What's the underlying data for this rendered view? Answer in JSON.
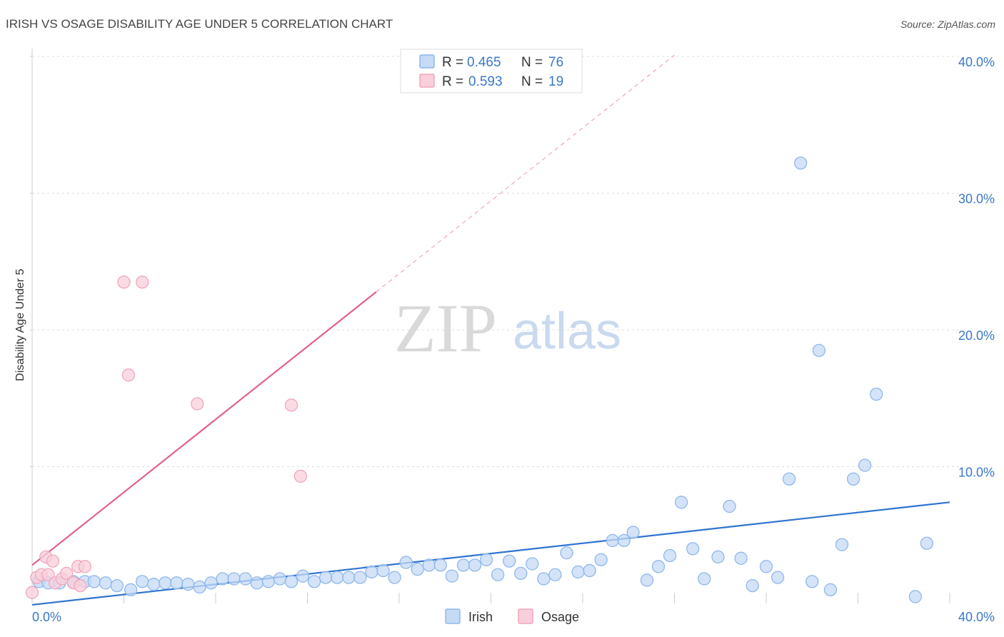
{
  "chart_data": {
    "type": "scatter",
    "title": "IRISH VS OSAGE DISABILITY AGE UNDER 5 CORRELATION CHART",
    "source": "Source: ZipAtlas.com",
    "xlabel": "",
    "ylabel": "Disability Age Under 5",
    "xlim": [
      0,
      40
    ],
    "ylim": [
      0,
      40
    ],
    "x_tick_labels": [
      "0.0%",
      "40.0%"
    ],
    "y_ticks": [
      10,
      20,
      30,
      40
    ],
    "y_tick_labels": [
      "10.0%",
      "20.0%",
      "30.0%",
      "40.0%"
    ],
    "watermark": {
      "zip": "ZIP",
      "atlas": "atlas"
    },
    "legend": {
      "rows": [
        {
          "r_label": "R =",
          "r_value": "0.465",
          "n_label": "N =",
          "n_value": "76"
        },
        {
          "r_label": "R =",
          "r_value": "0.593",
          "n_label": "N =",
          "n_value": "19"
        }
      ]
    },
    "series": [
      {
        "name": "Irish",
        "color": "#8fb8ec",
        "fill": "#c5daf5",
        "line_color": "#2f74d0",
        "trend": {
          "x": [
            0,
            40
          ],
          "y": [
            -0.1,
            7.4
          ]
        },
        "points": [
          [
            0.3,
            1.6
          ],
          [
            0.7,
            1.5
          ],
          [
            1.2,
            1.5
          ],
          [
            1.8,
            1.6
          ],
          [
            2.3,
            1.6
          ],
          [
            2.7,
            1.6
          ],
          [
            3.2,
            1.5
          ],
          [
            3.7,
            1.3
          ],
          [
            4.3,
            1.0
          ],
          [
            4.8,
            1.6
          ],
          [
            5.3,
            1.4
          ],
          [
            5.8,
            1.5
          ],
          [
            6.3,
            1.5
          ],
          [
            6.8,
            1.4
          ],
          [
            7.3,
            1.2
          ],
          [
            7.8,
            1.5
          ],
          [
            8.3,
            1.8
          ],
          [
            8.8,
            1.8
          ],
          [
            9.3,
            1.8
          ],
          [
            9.8,
            1.5
          ],
          [
            10.3,
            1.6
          ],
          [
            10.8,
            1.8
          ],
          [
            11.3,
            1.6
          ],
          [
            11.8,
            2.0
          ],
          [
            12.3,
            1.6
          ],
          [
            12.8,
            1.9
          ],
          [
            13.3,
            1.9
          ],
          [
            13.8,
            1.9
          ],
          [
            14.3,
            1.9
          ],
          [
            14.8,
            2.3
          ],
          [
            15.3,
            2.4
          ],
          [
            15.8,
            1.9
          ],
          [
            16.3,
            3.0
          ],
          [
            16.8,
            2.5
          ],
          [
            17.3,
            2.8
          ],
          [
            17.8,
            2.8
          ],
          [
            18.3,
            2.0
          ],
          [
            18.8,
            2.8
          ],
          [
            19.3,
            2.8
          ],
          [
            19.8,
            3.2
          ],
          [
            20.3,
            2.1
          ],
          [
            20.8,
            3.1
          ],
          [
            21.3,
            2.2
          ],
          [
            21.8,
            2.9
          ],
          [
            22.3,
            1.8
          ],
          [
            22.8,
            2.1
          ],
          [
            23.3,
            3.7
          ],
          [
            23.8,
            2.3
          ],
          [
            24.3,
            2.4
          ],
          [
            24.8,
            3.2
          ],
          [
            25.3,
            4.6
          ],
          [
            25.8,
            4.6
          ],
          [
            26.2,
            5.2
          ],
          [
            26.8,
            1.7
          ],
          [
            27.3,
            2.7
          ],
          [
            27.8,
            3.5
          ],
          [
            28.3,
            7.4
          ],
          [
            28.8,
            4.0
          ],
          [
            29.3,
            1.8
          ],
          [
            29.9,
            3.4
          ],
          [
            30.4,
            7.1
          ],
          [
            30.9,
            3.3
          ],
          [
            31.4,
            1.3
          ],
          [
            32.0,
            2.7
          ],
          [
            32.5,
            1.9
          ],
          [
            33.0,
            9.1
          ],
          [
            33.5,
            32.2
          ],
          [
            34.0,
            1.6
          ],
          [
            34.3,
            18.5
          ],
          [
            34.8,
            1.0
          ],
          [
            35.3,
            4.3
          ],
          [
            35.8,
            9.1
          ],
          [
            36.3,
            10.1
          ],
          [
            36.8,
            15.3
          ],
          [
            38.5,
            0.5
          ],
          [
            39.0,
            4.4
          ]
        ]
      },
      {
        "name": "Osage",
        "color": "#f0a6bc",
        "fill": "#f8cfdb",
        "line_color": "#e3608a",
        "trend": {
          "x": [
            0,
            28
          ],
          "y": [
            2.8,
            40.1
          ]
        },
        "trend_solid_until": 15.0,
        "points": [
          [
            0.0,
            0.8
          ],
          [
            0.2,
            1.9
          ],
          [
            0.4,
            2.1
          ],
          [
            0.6,
            3.4
          ],
          [
            0.7,
            2.1
          ],
          [
            0.9,
            3.1
          ],
          [
            1.0,
            1.5
          ],
          [
            1.3,
            1.8
          ],
          [
            1.5,
            2.2
          ],
          [
            1.8,
            1.5
          ],
          [
            2.0,
            2.7
          ],
          [
            2.1,
            1.3
          ],
          [
            2.3,
            2.7
          ],
          [
            4.0,
            23.5
          ],
          [
            4.2,
            16.7
          ],
          [
            4.8,
            23.5
          ],
          [
            7.2,
            14.6
          ],
          [
            11.3,
            14.5
          ],
          [
            11.7,
            9.3
          ]
        ]
      }
    ]
  }
}
